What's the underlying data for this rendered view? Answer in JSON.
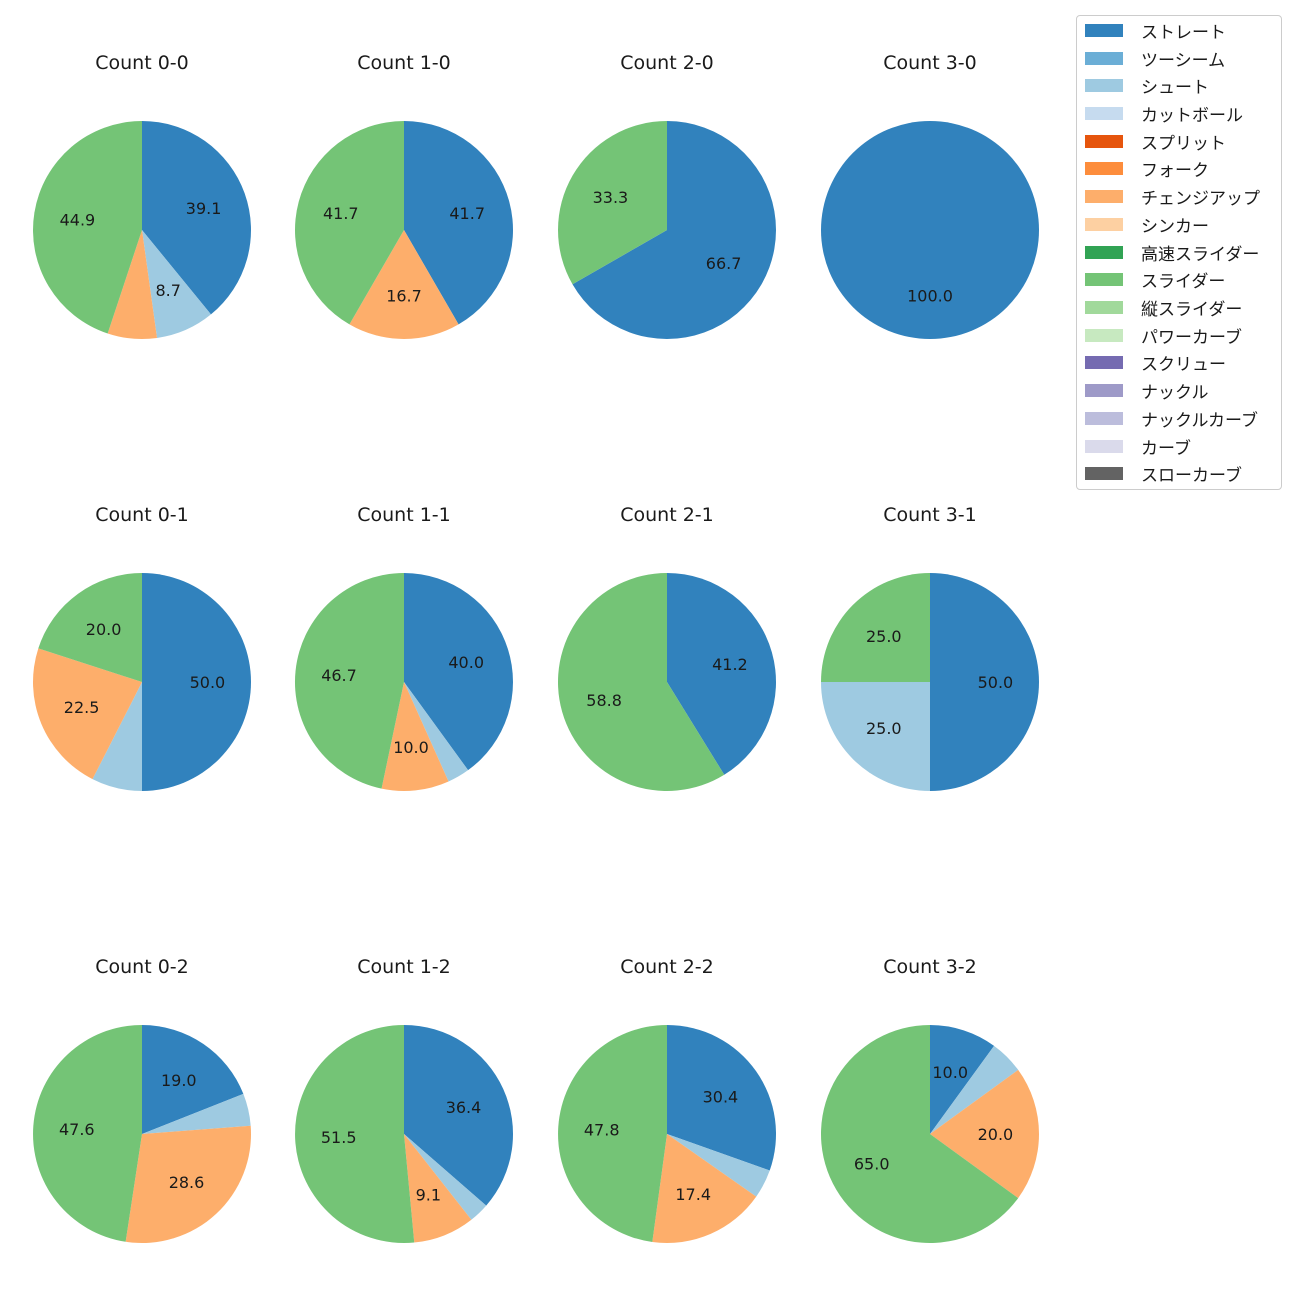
{
  "legend": {
    "items": [
      {
        "label": "ストレート",
        "color": "#3182bd"
      },
      {
        "label": "ツーシーム",
        "color": "#6baed6"
      },
      {
        "label": "シュート",
        "color": "#9ecae1"
      },
      {
        "label": "カットボール",
        "color": "#c6dbef"
      },
      {
        "label": "スプリット",
        "color": "#e6550d"
      },
      {
        "label": "フォーク",
        "color": "#fd8d3c"
      },
      {
        "label": "チェンジアップ",
        "color": "#fdae6b"
      },
      {
        "label": "シンカー",
        "color": "#fdd0a2"
      },
      {
        "label": "高速スライダー",
        "color": "#31a354"
      },
      {
        "label": "スライダー",
        "color": "#74c476"
      },
      {
        "label": "縦スライダー",
        "color": "#a1d99b"
      },
      {
        "label": "パワーカーブ",
        "color": "#c7e9c0"
      },
      {
        "label": "スクリュー",
        "color": "#756bb1"
      },
      {
        "label": "ナックル",
        "color": "#9e9ac8"
      },
      {
        "label": "ナックルカーブ",
        "color": "#bcbddc"
      },
      {
        "label": "カーブ",
        "color": "#dadaeb"
      },
      {
        "label": "スローカーブ",
        "color": "#636363"
      }
    ]
  },
  "chart_data": [
    {
      "type": "pie",
      "title": "Count 0-0",
      "slices": [
        {
          "pitch": "ストレート",
          "value": 39.1,
          "label": "39.1"
        },
        {
          "pitch": "シュート",
          "value": 8.7,
          "label": "8.7"
        },
        {
          "pitch": "チェンジアップ",
          "value": 7.3,
          "label": ""
        },
        {
          "pitch": "スライダー",
          "value": 44.9,
          "label": "44.9"
        }
      ]
    },
    {
      "type": "pie",
      "title": "Count 1-0",
      "slices": [
        {
          "pitch": "ストレート",
          "value": 41.7,
          "label": "41.7"
        },
        {
          "pitch": "チェンジアップ",
          "value": 16.7,
          "label": "16.7"
        },
        {
          "pitch": "スライダー",
          "value": 41.7,
          "label": "41.7"
        }
      ]
    },
    {
      "type": "pie",
      "title": "Count 2-0",
      "slices": [
        {
          "pitch": "ストレート",
          "value": 66.7,
          "label": "66.7"
        },
        {
          "pitch": "スライダー",
          "value": 33.3,
          "label": "33.3"
        }
      ]
    },
    {
      "type": "pie",
      "title": "Count 3-0",
      "slices": [
        {
          "pitch": "ストレート",
          "value": 100.0,
          "label": "100.0"
        }
      ]
    },
    {
      "type": "pie",
      "title": "Count 0-1",
      "slices": [
        {
          "pitch": "ストレート",
          "value": 50.0,
          "label": "50.0"
        },
        {
          "pitch": "シュート",
          "value": 7.5,
          "label": ""
        },
        {
          "pitch": "チェンジアップ",
          "value": 22.5,
          "label": "22.5"
        },
        {
          "pitch": "スライダー",
          "value": 20.0,
          "label": "20.0"
        }
      ]
    },
    {
      "type": "pie",
      "title": "Count 1-1",
      "slices": [
        {
          "pitch": "ストレート",
          "value": 40.0,
          "label": "40.0"
        },
        {
          "pitch": "シュート",
          "value": 3.3,
          "label": ""
        },
        {
          "pitch": "チェンジアップ",
          "value": 10.0,
          "label": "10.0"
        },
        {
          "pitch": "スライダー",
          "value": 46.7,
          "label": "46.7"
        }
      ]
    },
    {
      "type": "pie",
      "title": "Count 2-1",
      "slices": [
        {
          "pitch": "ストレート",
          "value": 41.2,
          "label": "41.2"
        },
        {
          "pitch": "スライダー",
          "value": 58.8,
          "label": "58.8"
        }
      ]
    },
    {
      "type": "pie",
      "title": "Count 3-1",
      "slices": [
        {
          "pitch": "ストレート",
          "value": 50.0,
          "label": "50.0"
        },
        {
          "pitch": "シュート",
          "value": 25.0,
          "label": "25.0"
        },
        {
          "pitch": "スライダー",
          "value": 25.0,
          "label": "25.0"
        }
      ]
    },
    {
      "type": "pie",
      "title": "Count 0-2",
      "slices": [
        {
          "pitch": "ストレート",
          "value": 19.0,
          "label": "19.0"
        },
        {
          "pitch": "シュート",
          "value": 4.8,
          "label": ""
        },
        {
          "pitch": "チェンジアップ",
          "value": 28.6,
          "label": "28.6"
        },
        {
          "pitch": "スライダー",
          "value": 47.6,
          "label": "47.6"
        }
      ]
    },
    {
      "type": "pie",
      "title": "Count 1-2",
      "slices": [
        {
          "pitch": "ストレート",
          "value": 36.4,
          "label": "36.4"
        },
        {
          "pitch": "シュート",
          "value": 3.0,
          "label": ""
        },
        {
          "pitch": "チェンジアップ",
          "value": 9.1,
          "label": "9.1"
        },
        {
          "pitch": "スライダー",
          "value": 51.5,
          "label": "51.5"
        }
      ]
    },
    {
      "type": "pie",
      "title": "Count 2-2",
      "slices": [
        {
          "pitch": "ストレート",
          "value": 30.4,
          "label": "30.4"
        },
        {
          "pitch": "シュート",
          "value": 4.3,
          "label": ""
        },
        {
          "pitch": "チェンジアップ",
          "value": 17.4,
          "label": "17.4"
        },
        {
          "pitch": "スライダー",
          "value": 47.8,
          "label": "47.8"
        }
      ]
    },
    {
      "type": "pie",
      "title": "Count 3-2",
      "slices": [
        {
          "pitch": "ストレート",
          "value": 10.0,
          "label": "10.0"
        },
        {
          "pitch": "シュート",
          "value": 5.0,
          "label": ""
        },
        {
          "pitch": "チェンジアップ",
          "value": 20.0,
          "label": "20.0"
        },
        {
          "pitch": "スライダー",
          "value": 65.0,
          "label": "65.0"
        }
      ]
    }
  ]
}
